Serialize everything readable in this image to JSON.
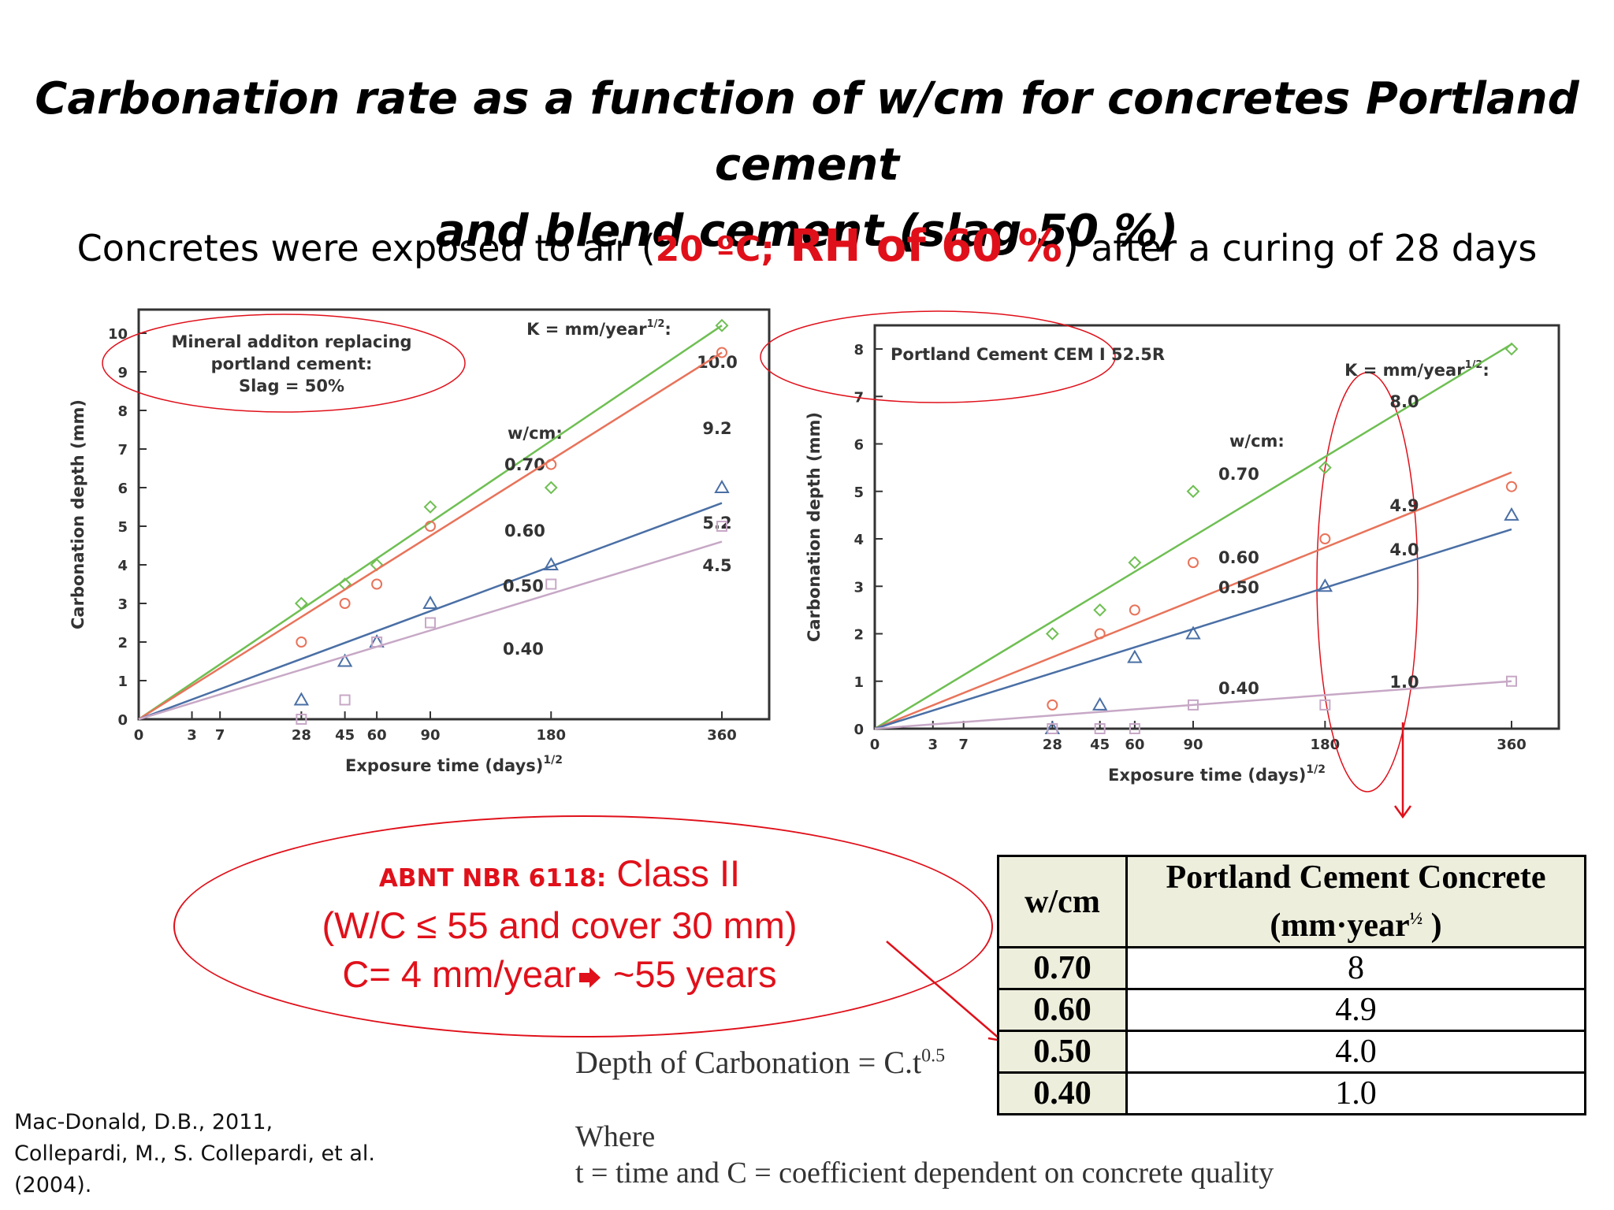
{
  "title_line1": "Carbonation rate as a function of w/cm for concretes Portland cement",
  "title_line2": "and blend cement (slag 50 %)",
  "subtitle": {
    "pre": "Concretes were exposed to air (",
    "temp": "20 ºC;",
    "rh": " RH of 60 %",
    "close": ")",
    "post": " after a curing of 28 days"
  },
  "colors": {
    "accent_red": "#e0101a",
    "green": "#6fbf53",
    "orange": "#e8735a",
    "blue": "#4a6fa5",
    "purple": "#c7a8c6"
  },
  "chart_data": [
    {
      "type": "scatter",
      "annotation": [
        "Mineral additon replacing",
        "portland cement:",
        "Slag = 50%"
      ],
      "xlabel": "Exposure time (days)",
      "xlabel_sup": "1/2",
      "ylabel": "Carbonation depth (mm)",
      "x_ticks": [
        "0",
        "3",
        "7",
        "28",
        "45",
        "60",
        "90",
        "180",
        "360"
      ],
      "y_ticks": [
        "0",
        "1",
        "2",
        "3",
        "4",
        "5",
        "6",
        "7",
        "8",
        "9",
        "10"
      ],
      "ylim": [
        0,
        10
      ],
      "k_label": "K = mm/year",
      "k_label_sup": "1/2",
      "k_label_suffix": ":",
      "wcm_label": "w/cm:",
      "series": [
        {
          "name": "0.70",
          "k": "10.0",
          "marker": "diamond",
          "color": "#6fbf53",
          "fit_end": 10.2,
          "x": [
            28,
            45,
            60,
            90,
            180,
            360
          ],
          "y": [
            3.0,
            3.5,
            4.0,
            5.5,
            6.0,
            10.2
          ]
        },
        {
          "name": "0.60",
          "k": "9.2",
          "marker": "circle",
          "color": "#e8735a",
          "fit_end": 9.5,
          "x": [
            28,
            45,
            60,
            90,
            180,
            360
          ],
          "y": [
            2.0,
            3.0,
            3.5,
            5.0,
            6.6,
            9.5
          ]
        },
        {
          "name": "0.50",
          "k": "5.2",
          "marker": "triangle",
          "color": "#4a6fa5",
          "fit_end": 5.6,
          "x": [
            28,
            45,
            60,
            90,
            180,
            360
          ],
          "y": [
            0.5,
            1.5,
            2.0,
            3.0,
            4.0,
            6.0
          ]
        },
        {
          "name": "0.40",
          "k": "4.5",
          "marker": "square",
          "color": "#c7a8c6",
          "fit_end": 4.6,
          "x": [
            28,
            45,
            60,
            90,
            180,
            360
          ],
          "y": [
            0.0,
            0.5,
            2.0,
            2.5,
            3.5,
            5.0
          ]
        }
      ]
    },
    {
      "type": "scatter",
      "annotation": [
        "Portland Cement CEM I 52.5R"
      ],
      "xlabel": "Exposure time (days)",
      "xlabel_sup": "1/2",
      "ylabel": "Carbonation depth (mm)",
      "x_ticks": [
        "0",
        "3",
        "7",
        "28",
        "45",
        "60",
        "90",
        "180",
        "360"
      ],
      "y_ticks": [
        "0",
        "1",
        "2",
        "3",
        "4",
        "5",
        "6",
        "7",
        "8"
      ],
      "ylim": [
        0,
        8
      ],
      "k_label": "K = mm/year",
      "k_label_sup": "1/2",
      "k_label_suffix": ":",
      "wcm_label": "w/cm:",
      "series": [
        {
          "name": "0.70",
          "k": "8.0",
          "marker": "diamond",
          "color": "#6fbf53",
          "fit_end": 8.1,
          "x": [
            28,
            45,
            60,
            90,
            180,
            360
          ],
          "y": [
            2.0,
            2.5,
            3.5,
            5.0,
            5.5,
            8.0
          ]
        },
        {
          "name": "0.60",
          "k": "4.9",
          "marker": "circle",
          "color": "#e8735a",
          "fit_end": 5.4,
          "x": [
            28,
            45,
            60,
            90,
            180,
            360
          ],
          "y": [
            0.5,
            2.0,
            2.5,
            3.5,
            4.0,
            5.1
          ]
        },
        {
          "name": "0.50",
          "k": "4.0",
          "marker": "triangle",
          "color": "#4a6fa5",
          "fit_end": 4.2,
          "x": [
            28,
            45,
            60,
            90,
            180,
            360
          ],
          "y": [
            0.0,
            0.5,
            1.5,
            2.0,
            3.0,
            4.5
          ]
        },
        {
          "name": "0.40",
          "k": "1.0",
          "marker": "square",
          "color": "#c7a8c6",
          "fit_end": 1.0,
          "x": [
            28,
            45,
            60,
            90,
            180,
            360
          ],
          "y": [
            0.0,
            0.0,
            0.0,
            0.5,
            0.5,
            1.0
          ]
        }
      ]
    }
  ],
  "note": {
    "line1_small": "ABNT NBR 6118:",
    "line1_big": " Class II",
    "line2": "(W/C ≤ 55 and cover 30 mm)",
    "line3_a": "C= 4 mm/year",
    "line3_b": " ~55 years"
  },
  "table": {
    "header_wcm": "w/cm",
    "header_pcc_line1": "Portland Cement Concrete",
    "header_pcc_line2a": "(mm·year",
    "header_pcc_sup": "½",
    "header_pcc_line2b": " )",
    "rows": [
      {
        "wcm": "0.70",
        "value": "8"
      },
      {
        "wcm": "0.60",
        "value": "4.9"
      },
      {
        "wcm": "0.50",
        "value": "4.0"
      },
      {
        "wcm": "0.40",
        "value": "1.0"
      }
    ]
  },
  "formula": {
    "text": "Depth of Carbonation = C.t",
    "sup": "0.5"
  },
  "where": {
    "line1": "Where",
    "line2": "t = time  and C = coefficient dependent on concrete quality"
  },
  "references": [
    "Mac-Donald, D.B., 2011,",
    "Collepardi, M., S. Collepardi, et al.",
    "(2004)."
  ]
}
